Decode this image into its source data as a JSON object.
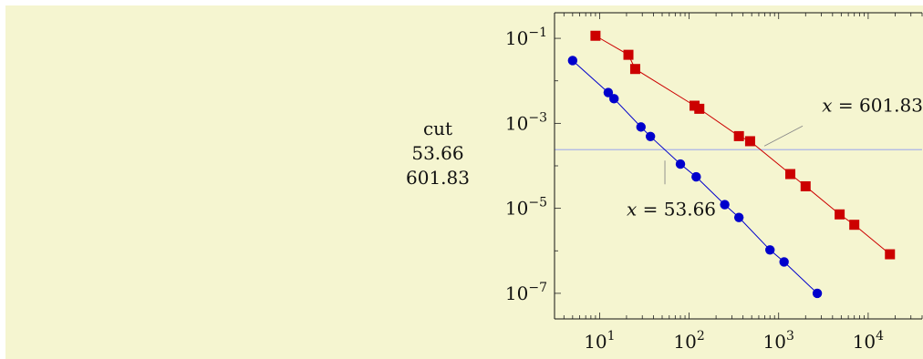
{
  "sidebar": {
    "heading": "cut",
    "value1": "53.66",
    "value2": "601.83"
  },
  "chart_data": {
    "type": "scatter",
    "x_scale": "log",
    "y_scale": "log",
    "xlim": [
      3.14,
      40000
    ],
    "ylim": [
      2.5e-08,
      0.4
    ],
    "x_ticks": [
      10,
      100,
      1000,
      10000
    ],
    "y_ticks": [
      1e-07,
      1e-05,
      0.001,
      0.1
    ],
    "x_tick_labels": [
      {
        "base": "10",
        "exp": "1"
      },
      {
        "base": "10",
        "exp": "2"
      },
      {
        "base": "10",
        "exp": "3"
      },
      {
        "base": "10",
        "exp": "4"
      }
    ],
    "y_tick_labels": [
      {
        "base": "10",
        "exp": "−7"
      },
      {
        "base": "10",
        "exp": "−5"
      },
      {
        "base": "10",
        "exp": "−3"
      },
      {
        "base": "10",
        "exp": "−1"
      }
    ],
    "cut_line": {
      "y": 0.00024,
      "color": "#aab4e8"
    },
    "series": [
      {
        "marker": "circle",
        "color": "#0000cc",
        "x": [
          5,
          12.5,
          14.5,
          29,
          37,
          80,
          120,
          250,
          360,
          800,
          1150,
          2700
        ],
        "y": [
          0.03,
          0.0053,
          0.0038,
          0.00082,
          0.00049,
          0.00011,
          5.5e-05,
          1.22e-05,
          6.1e-06,
          1.05e-06,
          5.5e-07,
          1e-07
        ]
      },
      {
        "marker": "square",
        "color": "#cc0000",
        "x": [
          9,
          21,
          25,
          115,
          130,
          360,
          480,
          1350,
          2000,
          4800,
          7000,
          17500
        ],
        "y": [
          0.115,
          0.041,
          0.019,
          0.0026,
          0.0022,
          0.0005,
          0.00038,
          6.4e-05,
          3.3e-05,
          7.2e-06,
          4.1e-06,
          8.3e-07
        ]
      }
    ],
    "annotations": [
      {
        "text": "= 53.66",
        "var": "x",
        "x": 53.66,
        "y": 0.00024,
        "position": "below-left"
      },
      {
        "text": "= 601.83",
        "var": "x",
        "x": 601.83,
        "y": 0.00024,
        "position": "above-right"
      }
    ]
  }
}
